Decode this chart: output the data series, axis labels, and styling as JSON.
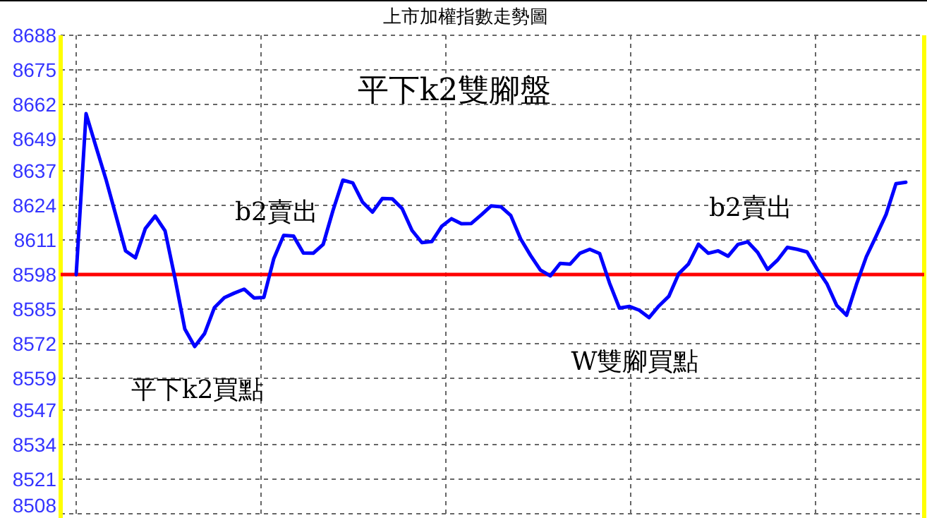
{
  "chart_data": {
    "type": "line",
    "title": "上市加權指數走勢圖",
    "annotations": [
      "平下k2雙腳盤",
      "b2賣出",
      "平下k2買點",
      "W雙腳買點",
      "b2賣出"
    ],
    "categories": [
      null,
      null,
      null,
      null,
      null,
      null,
      null,
      null,
      null,
      null,
      null,
      null,
      null,
      null,
      null,
      null,
      null,
      null,
      null,
      null,
      null,
      null,
      null,
      null,
      null,
      null,
      null,
      null,
      null,
      null,
      null,
      null,
      null,
      null,
      null,
      null,
      null,
      null,
      null,
      null,
      null,
      null,
      null,
      null,
      null,
      null,
      null,
      null,
      null,
      null,
      null,
      null,
      null,
      null,
      null,
      null,
      null,
      null,
      null,
      null,
      null,
      null,
      null,
      null,
      null,
      null,
      null,
      null,
      null,
      null,
      null,
      null,
      null,
      null,
      null,
      null,
      null,
      null,
      null,
      null,
      null,
      null,
      null,
      null,
      null
    ],
    "series": [
      {
        "color": "#0000ff",
        "values": [
          8598,
          8658.5,
          8646.1,
          8634.0,
          8620.5,
          8606.9,
          8604.3,
          8615.3,
          8620,
          8614.4,
          8596.7,
          8577.5,
          8570.9,
          8575.8,
          8585.6,
          8589.3,
          8591.0,
          8592.5,
          8589.2,
          8589.4,
          8603.9,
          8612.7,
          8612.5,
          8606.1,
          8606.0,
          8609.3,
          8622.1,
          8633.5,
          8632.5,
          8625.2,
          8621.5,
          8626.6,
          8626.5,
          8622.8,
          8614.6,
          8610.0,
          8610.4,
          8616.1,
          8619.0,
          8617.1,
          8617.2,
          8620.4,
          8623.8,
          8623.5,
          8620.2,
          8611.4,
          8605.2,
          8599.7,
          8597.5,
          8602.2,
          8601.9,
          8606.0,
          8607.5,
          8605.9,
          8594.8,
          8585.4,
          8586,
          8584.6,
          8581.8,
          8586.2,
          8589.8,
          8598.3,
          8602.0,
          8609.4,
          8606.0,
          8606.9,
          8604.9,
          8609.3,
          8610.3,
          8606.3,
          8599.9,
          8603.4,
          8608.2,
          8607.5,
          8606.5,
          8600.1,
          8594.6,
          8586.4,
          8582.7,
          8594.3,
          8604.7,
          8612.5,
          8620.6,
          8632.2,
          8632.7
        ]
      }
    ],
    "ylim": [
      8508,
      8688
    ],
    "yticks": [
      8508,
      8521,
      8534,
      8547,
      8559,
      8572,
      8585,
      8598,
      8611,
      8624,
      8637,
      8649,
      8662,
      8675,
      8688
    ],
    "grid": true,
    "ref_lines": [
      {
        "axis": "y",
        "value": 8598,
        "color": "#ff0000"
      }
    ]
  }
}
